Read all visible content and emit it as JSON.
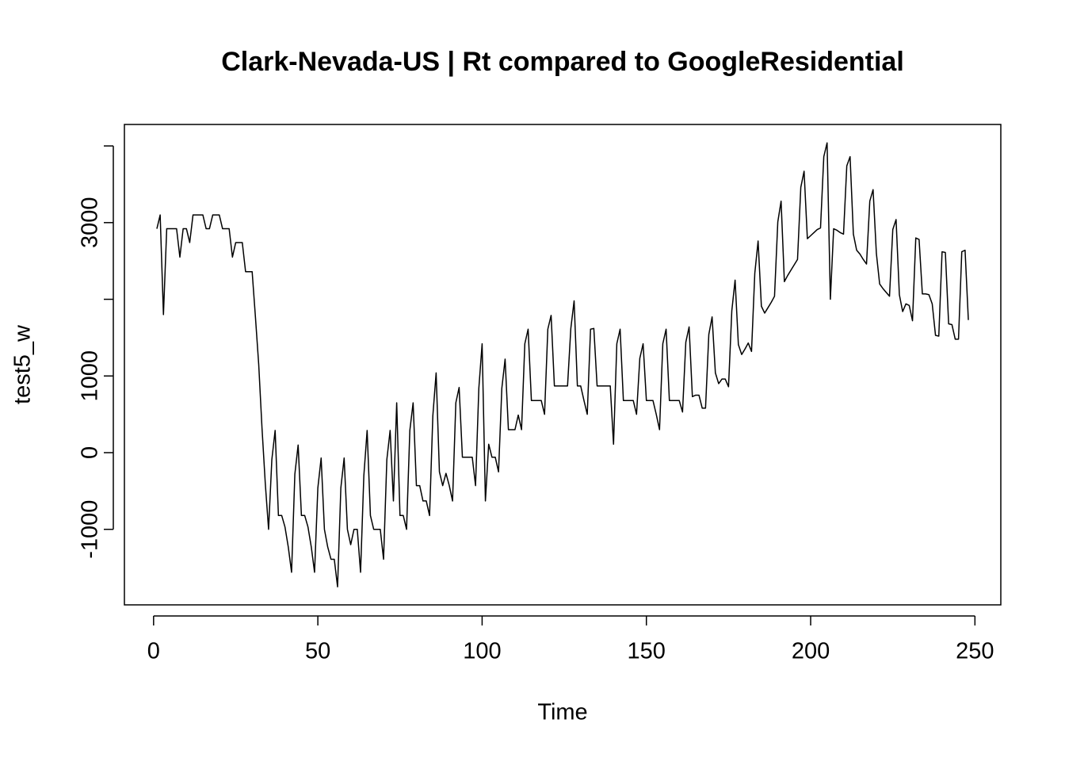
{
  "chart_data": {
    "type": "line",
    "title": "Clark-Nevada-US | Rt compared to GoogleResidential",
    "x_label": "Time",
    "y_label": "test5_w",
    "color": "#000000",
    "xlim": [
      -8.88,
      257.88
    ],
    "ylim": [
      -1985,
      4280
    ],
    "xticks": [
      0,
      50,
      100,
      150,
      200,
      250
    ],
    "yticks": [
      -1000,
      0,
      1000,
      {
        "value": 2000,
        "label": null
      },
      3000,
      {
        "value": 4000,
        "label": null
      }
    ],
    "x": [
      1,
      2,
      3,
      4,
      5,
      6,
      7,
      8,
      9,
      10,
      11,
      12,
      13,
      14,
      15,
      16,
      17,
      18,
      19,
      20,
      21,
      22,
      23,
      24,
      25,
      26,
      27,
      28,
      29,
      30,
      31,
      32,
      33,
      34,
      35,
      36,
      37,
      38,
      39,
      40,
      41,
      42,
      43,
      44,
      45,
      46,
      47,
      48,
      49,
      50,
      51,
      52,
      53,
      54,
      55,
      56,
      57,
      58,
      59,
      60,
      61,
      62,
      63,
      64,
      65,
      66,
      67,
      68,
      69,
      70,
      71,
      72,
      73,
      74,
      75,
      76,
      77,
      78,
      79,
      80,
      81,
      82,
      83,
      84,
      85,
      86,
      87,
      88,
      89,
      90,
      91,
      92,
      93,
      94,
      95,
      96,
      97,
      98,
      99,
      100,
      101,
      102,
      103,
      104,
      105,
      106,
      107,
      108,
      109,
      110,
      111,
      112,
      113,
      114,
      115,
      116,
      117,
      118,
      119,
      120,
      121,
      122,
      123,
      124,
      125,
      126,
      127,
      128,
      129,
      130,
      131,
      132,
      133,
      134,
      135,
      136,
      137,
      138,
      139,
      140,
      141,
      142,
      143,
      144,
      145,
      146,
      147,
      148,
      149,
      150,
      151,
      152,
      153,
      154,
      155,
      156,
      157,
      158,
      159,
      160,
      161,
      162,
      163,
      164,
      165,
      166,
      167,
      168,
      169,
      170,
      171,
      172,
      173,
      174,
      175,
      176,
      177,
      178,
      179,
      180,
      181,
      182,
      183,
      184,
      185,
      186,
      187,
      188,
      189,
      190,
      191,
      192,
      193,
      194,
      195,
      196,
      197,
      198,
      199,
      200,
      201,
      202,
      203,
      204,
      205,
      206,
      207,
      208,
      209,
      210,
      211,
      212,
      213,
      214,
      215,
      216,
      217,
      218,
      219,
      220,
      221,
      222,
      223,
      224,
      225,
      226,
      227,
      228,
      229,
      230,
      231,
      232,
      233,
      234,
      235,
      236,
      237,
      238,
      239,
      240,
      241,
      242,
      243,
      244,
      245,
      246,
      247,
      248
    ],
    "values": [
      2920,
      3100,
      1800,
      2920,
      2920,
      2920,
      2920,
      2550,
      2920,
      2920,
      2740,
      3100,
      3100,
      3100,
      3100,
      2920,
      2920,
      3100,
      3100,
      3100,
      2920,
      2920,
      2920,
      2550,
      2740,
      2740,
      2740,
      2360,
      2360,
      2360,
      1770,
      1150,
      320,
      -400,
      -1000,
      -90,
      290,
      -820,
      -820,
      -970,
      -1230,
      -1560,
      -280,
      100,
      -820,
      -820,
      -970,
      -1230,
      -1560,
      -460,
      -70,
      -1000,
      -1230,
      -1390,
      -1390,
      -1750,
      -460,
      -70,
      -1000,
      -1200,
      -1000,
      -1000,
      -1560,
      -300,
      290,
      -820,
      -1000,
      -1000,
      -1000,
      -1390,
      -90,
      290,
      -630,
      650,
      -820,
      -820,
      -1000,
      290,
      650,
      -430,
      -430,
      -630,
      -630,
      -820,
      480,
      1040,
      -250,
      -430,
      -270,
      -430,
      -630,
      650,
      850,
      -60,
      -60,
      -60,
      -60,
      -430,
      840,
      1420,
      -630,
      110,
      -60,
      -60,
      -250,
      840,
      1220,
      300,
      300,
      300,
      490,
      300,
      1420,
      1610,
      680,
      680,
      680,
      680,
      500,
      1610,
      1790,
      870,
      870,
      870,
      870,
      870,
      1620,
      1980,
      870,
      870,
      680,
      500,
      1610,
      1620,
      870,
      870,
      870,
      870,
      870,
      110,
      1420,
      1610,
      680,
      680,
      680,
      680,
      500,
      1230,
      1420,
      680,
      680,
      680,
      500,
      300,
      1420,
      1610,
      680,
      680,
      680,
      680,
      530,
      1440,
      1640,
      730,
      750,
      750,
      580,
      580,
      1540,
      1770,
      1040,
      900,
      960,
      960,
      860,
      1850,
      2250,
      1410,
      1280,
      1350,
      1430,
      1320,
      2340,
      2760,
      1910,
      1820,
      1890,
      1960,
      2040,
      3010,
      3280,
      2230,
      2310,
      2380,
      2450,
      2520,
      3460,
      3670,
      2790,
      2830,
      2870,
      2910,
      2930,
      3860,
      4040,
      2000,
      2920,
      2900,
      2870,
      2850,
      3740,
      3860,
      2850,
      2640,
      2590,
      2520,
      2460,
      3280,
      3430,
      2600,
      2200,
      2140,
      2090,
      2040,
      2910,
      3040,
      2060,
      1840,
      1940,
      1920,
      1720,
      2800,
      2780,
      2070,
      2070,
      2060,
      1940,
      1530,
      1520,
      2620,
      2610,
      1680,
      1670,
      1480,
      1480,
      2620,
      2640,
      1730
    ]
  }
}
